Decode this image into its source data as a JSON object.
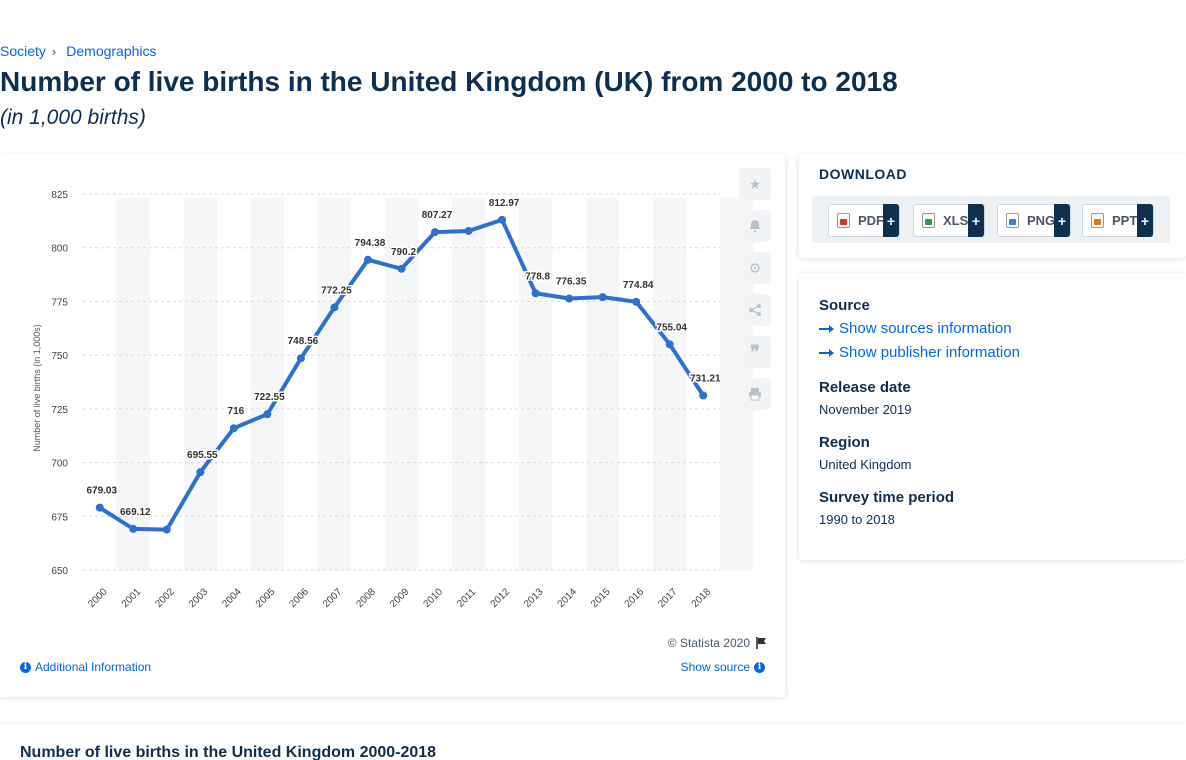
{
  "breadcrumb": {
    "item1": "Society",
    "sep": "›",
    "item2": "Demographics"
  },
  "title": "Number of live births in the United Kingdom (UK) from 2000 to 2018",
  "subtitle": "(in 1,000 births)",
  "chart_footer": {
    "copyright": "© Statista 2020",
    "additional": "Additional Information",
    "show_source": "Show source"
  },
  "download": {
    "title": "DOWNLOAD",
    "buttons": [
      {
        "label": "PDF",
        "plus": "+",
        "color": "#d9342b"
      },
      {
        "label": "XLS",
        "plus": "+",
        "color": "#2e9e4b"
      },
      {
        "label": "PNG",
        "plus": "+",
        "color": "#3b7fd1"
      },
      {
        "label": "PPT",
        "plus": "+",
        "color": "#e07b22"
      }
    ]
  },
  "info": {
    "source_heading": "Source",
    "show_sources": "Show sources information",
    "show_publisher": "Show publisher information",
    "release_heading": "Release date",
    "release_value": "November 2019",
    "region_heading": "Region",
    "region_value": "United Kingdom",
    "survey_heading": "Survey time period",
    "survey_value": "1990 to 2018"
  },
  "bottom": {
    "title": "Number of live births in the United Kingdom 2000-2018"
  },
  "tools": [
    "star-icon",
    "bell-icon",
    "gear-icon",
    "share-icon",
    "quote-icon",
    "print-icon"
  ],
  "colors": {
    "line": "#2f6fd0",
    "link": "#0666e5",
    "title": "#0f2f4f"
  },
  "chart_data": {
    "type": "line",
    "title": "",
    "xlabel": "",
    "ylabel": "Number of live births (in 1,000s)",
    "ylim": [
      650,
      825
    ],
    "yticks": [
      650,
      675,
      700,
      725,
      750,
      775,
      800,
      825
    ],
    "grid": true,
    "categories": [
      "2000",
      "2001",
      "2002",
      "2003",
      "2004",
      "2005",
      "2006",
      "2007",
      "2008",
      "2009",
      "2010",
      "2011",
      "2012",
      "2013",
      "2014",
      "2015",
      "2016",
      "2017",
      "2018"
    ],
    "values": [
      679.03,
      669.12,
      668.8,
      695.55,
      716,
      722.55,
      748.56,
      772.25,
      794.38,
      790.2,
      807.27,
      807.8,
      812.97,
      778.8,
      776.35,
      777,
      774.84,
      755.04,
      731.21
    ],
    "labels": [
      "679.03",
      "669.12",
      "",
      "695.55",
      "716",
      "722.55",
      "748.56",
      "772.25",
      "794.38",
      "790.2",
      "807.27",
      "",
      "812.97",
      "778.8",
      "776.35",
      "",
      "774.84",
      "755.04",
      "731.21"
    ]
  }
}
